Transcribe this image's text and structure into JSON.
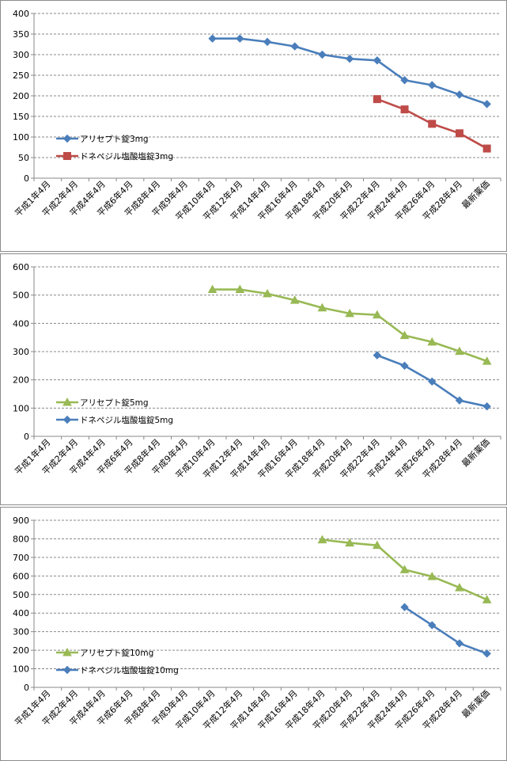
{
  "chart_data": [
    {
      "type": "line",
      "categories": [
        "平成1年4月",
        "平成2年4月",
        "平成4年4月",
        "平成6年4月",
        "平成8年4月",
        "平成9年4月",
        "平成10年4月",
        "平成12年4月",
        "平成14年4月",
        "平成16年4月",
        "平成18年4月",
        "平成20年4月",
        "平成22年4月",
        "平成24年4月",
        "平成26年4月",
        "平成28年4月",
        "最新薬価"
      ],
      "ylim": [
        0,
        400
      ],
      "yticks": [
        0,
        50,
        100,
        150,
        200,
        250,
        300,
        350,
        400
      ],
      "grid": true,
      "legend_position": "bottom-left",
      "series": [
        {
          "name": "アリセプト錠3mg",
          "color": "#4a7ebb",
          "marker": "diamond",
          "values": [
            null,
            null,
            null,
            null,
            null,
            null,
            339,
            339,
            331,
            320,
            300,
            290,
            286,
            238,
            226,
            203,
            180
          ]
        },
        {
          "name": "ドネペジル塩酸塩錠3mg",
          "color": "#be4b48",
          "marker": "square",
          "values": [
            null,
            null,
            null,
            null,
            null,
            null,
            null,
            null,
            null,
            null,
            null,
            null,
            192,
            167,
            132,
            109,
            72
          ]
        }
      ]
    },
    {
      "type": "line",
      "categories": [
        "平成1年4月",
        "平成2年4月",
        "平成4年4月",
        "平成6年4月",
        "平成8年4月",
        "平成9年4月",
        "平成10年4月",
        "平成12年4月",
        "平成14年4月",
        "平成16年4月",
        "平成18年4月",
        "平成20年4月",
        "平成22年4月",
        "平成24年4月",
        "平成26年4月",
        "平成28年4月",
        "最新薬価"
      ],
      "ylim": [
        0,
        600
      ],
      "yticks": [
        0,
        100,
        200,
        300,
        400,
        500,
        600
      ],
      "grid": true,
      "legend_position": "bottom-left",
      "series": [
        {
          "name": "アリセプト錠5mg",
          "color": "#98b954",
          "marker": "triangle",
          "values": [
            null,
            null,
            null,
            null,
            null,
            null,
            520,
            520,
            505,
            482,
            455,
            435,
            430,
            357,
            334,
            301,
            266
          ]
        },
        {
          "name": "ドネペジル塩酸塩錠5mg",
          "color": "#4a7ebb",
          "marker": "diamond",
          "values": [
            null,
            null,
            null,
            null,
            null,
            null,
            null,
            null,
            null,
            null,
            null,
            null,
            287,
            250,
            194,
            127,
            106
          ]
        }
      ]
    },
    {
      "type": "line",
      "categories": [
        "平成1年4月",
        "平成2年4月",
        "平成4年4月",
        "平成6年4月",
        "平成8年4月",
        "平成9年4月",
        "平成10年4月",
        "平成12年4月",
        "平成14年4月",
        "平成16年4月",
        "平成18年4月",
        "平成20年4月",
        "平成22年4月",
        "平成24年4月",
        "平成26年4月",
        "平成28年4月",
        "最新薬価"
      ],
      "ylim": [
        0,
        900
      ],
      "yticks": [
        0,
        100,
        200,
        300,
        400,
        500,
        600,
        700,
        800,
        900
      ],
      "grid": true,
      "legend_position": "bottom-left",
      "series": [
        {
          "name": "アリセプト錠10mg",
          "color": "#98b954",
          "marker": "triangle",
          "values": [
            null,
            null,
            null,
            null,
            null,
            null,
            null,
            null,
            null,
            null,
            795,
            778,
            765,
            634,
            597,
            537,
            472
          ]
        },
        {
          "name": "ドネペジル塩酸塩錠10mg",
          "color": "#4a7ebb",
          "marker": "diamond",
          "values": [
            null,
            null,
            null,
            null,
            null,
            null,
            null,
            null,
            null,
            null,
            null,
            null,
            null,
            432,
            335,
            237,
            182
          ]
        }
      ]
    }
  ]
}
